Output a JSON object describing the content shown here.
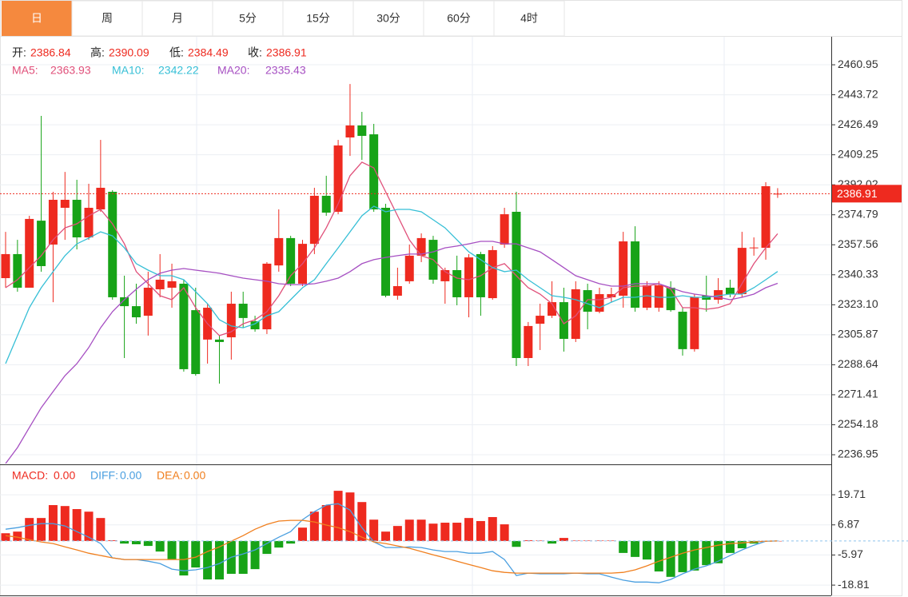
{
  "tabs": [
    "日",
    "周",
    "月",
    "5分",
    "15分",
    "30分",
    "60分",
    "4时"
  ],
  "active_tab": 0,
  "chart_data": [
    {
      "type": "candlestick",
      "up_color": "#ee2a1f",
      "down_color": "#17a317",
      "ohlc_labels": [
        "开:",
        "高:",
        "低:",
        "收:"
      ],
      "candles": [
        [
          2338.4,
          2365.0,
          2332.9,
          2352.2
        ],
        [
          2352.2,
          2360.4,
          2330.6,
          2332.9
        ],
        [
          2332.9,
          2374.2,
          2332.9,
          2372.4
        ],
        [
          2371.4,
          2431.6,
          2342.1,
          2345.3
        ],
        [
          2357.7,
          2388.0,
          2324.6,
          2383.4
        ],
        [
          2378.8,
          2399.4,
          2360.4,
          2383.4
        ],
        [
          2383.4,
          2394.9,
          2354.9,
          2361.8
        ],
        [
          2361.8,
          2392.6,
          2360.4,
          2378.8
        ],
        [
          2377.9,
          2417.8,
          2376.5,
          2390.3
        ],
        [
          2388.0,
          2388.9,
          2326.0,
          2327.4
        ],
        [
          2327.4,
          2339.8,
          2292.5,
          2322.3
        ],
        [
          2322.3,
          2335.2,
          2312.2,
          2315.9
        ],
        [
          2316.8,
          2342.1,
          2305.4,
          2332.9
        ],
        [
          2332.0,
          2352.2,
          2327.4,
          2337.5
        ],
        [
          2332.9,
          2346.7,
          2321.4,
          2336.6
        ],
        [
          2335.2,
          2337.5,
          2284.7,
          2286.1
        ],
        [
          2320.0,
          2332.9,
          2282.4,
          2283.3
        ],
        [
          2303.1,
          2323.7,
          2289.3,
          2321.4
        ],
        [
          2303.1,
          2305.4,
          2277.8,
          2301.7
        ],
        [
          2304.4,
          2330.6,
          2291.6,
          2323.7
        ],
        [
          2323.7,
          2330.6,
          2309.9,
          2315.5
        ],
        [
          2313.6,
          2316.8,
          2307.6,
          2309.0
        ],
        [
          2309.0,
          2347.6,
          2306.3,
          2346.7
        ],
        [
          2345.7,
          2377.9,
          2342.1,
          2361.4
        ],
        [
          2361.4,
          2362.7,
          2333.8,
          2335.2
        ],
        [
          2335.2,
          2360.4,
          2333.8,
          2358.1
        ],
        [
          2358.1,
          2390.3,
          2352.2,
          2385.7
        ],
        [
          2385.7,
          2397.2,
          2374.2,
          2376.0
        ],
        [
          2376.5,
          2417.8,
          2375.1,
          2414.6
        ],
        [
          2419.2,
          2449.9,
          2408.6,
          2426.1
        ],
        [
          2426.1,
          2433.9,
          2406.3,
          2420.1
        ],
        [
          2421.0,
          2427.0,
          2376.5,
          2377.9
        ],
        [
          2378.8,
          2381.1,
          2327.4,
          2328.3
        ],
        [
          2328.3,
          2344.4,
          2326.0,
          2333.8
        ],
        [
          2336.6,
          2357.7,
          2335.2,
          2351.3
        ],
        [
          2351.3,
          2364.1,
          2347.6,
          2361.4
        ],
        [
          2360.4,
          2362.7,
          2335.2,
          2337.5
        ],
        [
          2336.6,
          2344.4,
          2323.7,
          2343.0
        ],
        [
          2343.0,
          2351.3,
          2322.8,
          2327.4
        ],
        [
          2327.4,
          2352.2,
          2315.9,
          2350.3
        ],
        [
          2352.2,
          2353.5,
          2316.8,
          2327.4
        ],
        [
          2326.9,
          2356.8,
          2326.0,
          2354.5
        ],
        [
          2357.7,
          2378.8,
          2355.8,
          2375.1
        ],
        [
          2376.5,
          2388.0,
          2287.9,
          2292.5
        ],
        [
          2292.5,
          2313.2,
          2287.9,
          2310.9
        ],
        [
          2312.2,
          2323.7,
          2297.1,
          2316.8
        ],
        [
          2316.8,
          2336.6,
          2315.5,
          2324.6
        ],
        [
          2324.6,
          2332.9,
          2296.2,
          2303.5
        ],
        [
          2303.5,
          2336.6,
          2301.7,
          2332.0
        ],
        [
          2331.5,
          2335.2,
          2309.0,
          2319.1
        ],
        [
          2319.1,
          2332.9,
          2318.2,
          2329.2
        ],
        [
          2327.4,
          2332.9,
          2324.6,
          2329.2
        ],
        [
          2328.3,
          2365.0,
          2321.4,
          2359.5
        ],
        [
          2359.5,
          2368.2,
          2319.1,
          2321.4
        ],
        [
          2321.4,
          2336.6,
          2320.0,
          2334.3
        ],
        [
          2321.4,
          2336.6,
          2319.1,
          2334.3
        ],
        [
          2332.9,
          2336.6,
          2319.1,
          2320.0
        ],
        [
          2319.1,
          2321.4,
          2293.9,
          2297.6
        ],
        [
          2297.6,
          2329.2,
          2296.2,
          2327.4
        ],
        [
          2328.3,
          2339.8,
          2319.1,
          2326.0
        ],
        [
          2326.0,
          2338.4,
          2323.7,
          2331.5
        ],
        [
          2332.9,
          2337.5,
          2327.4,
          2329.2
        ],
        [
          2329.2,
          2365.0,
          2327.4,
          2355.8
        ],
        [
          2355.8,
          2361.8,
          2351.3,
          2356.0
        ],
        [
          2355.8,
          2393.5,
          2349.0,
          2391.2
        ],
        [
          2386.84,
          2390.09,
          2384.49,
          2386.91
        ]
      ],
      "series": [
        {
          "name": "MA5:",
          "color": "#e0507a",
          "values": [
            2332.9,
            2337.5,
            2344.4,
            2351.3,
            2360.4,
            2367.3,
            2369.6,
            2374.2,
            2377.9,
            2369.6,
            2358.1,
            2342.1,
            2335.2,
            2328.3,
            2326.0,
            2332.9,
            2321.4,
            2312.2,
            2305.4,
            2307.6,
            2312.2,
            2314.5,
            2319.1,
            2328.3,
            2339.8,
            2346.7,
            2355.8,
            2367.3,
            2381.1,
            2397.2,
            2405.0,
            2401.7,
            2388.0,
            2374.2,
            2360.4,
            2351.3,
            2349.0,
            2342.1,
            2338.4,
            2337.5,
            2339.8,
            2344.4,
            2346.7,
            2339.8,
            2332.9,
            2329.2,
            2323.7,
            2312.2,
            2316.8,
            2326.0,
            2326.0,
            2327.4,
            2332.9,
            2333.8,
            2333.8,
            2335.2,
            2332.0,
            2321.4,
            2321.4,
            2320.5,
            2321.4,
            2323.7,
            2335.2,
            2346.7,
            2355.8,
            2363.93
          ]
        },
        {
          "name": "MA10:",
          "color": "#36bfd6",
          "values": [
            2289.3,
            2305.4,
            2321.4,
            2332.9,
            2342.1,
            2351.3,
            2358.1,
            2361.4,
            2365.0,
            2362.7,
            2355.8,
            2346.7,
            2343.0,
            2339.8,
            2339.8,
            2337.5,
            2330.6,
            2323.7,
            2314.5,
            2310.9,
            2309.9,
            2312.2,
            2316.8,
            2319.1,
            2326.0,
            2332.9,
            2337.5,
            2346.7,
            2355.8,
            2365.0,
            2374.2,
            2379.7,
            2376.5,
            2377.9,
            2377.9,
            2376.5,
            2371.9,
            2367.3,
            2360.4,
            2353.5,
            2349.0,
            2344.4,
            2342.1,
            2343.0,
            2337.5,
            2332.9,
            2328.3,
            2327.4,
            2326.0,
            2323.7,
            2321.4,
            2324.6,
            2327.4,
            2327.4,
            2328.3,
            2327.4,
            2327.4,
            2328.3,
            2327.4,
            2327.4,
            2328.3,
            2329.2,
            2329.2,
            2332.9,
            2337.5,
            2342.22
          ]
        },
        {
          "name": "MA20:",
          "color": "#a64fc2",
          "values": [
            2231.9,
            2241.1,
            2252.6,
            2264.0,
            2273.2,
            2282.4,
            2289.3,
            2298.5,
            2309.9,
            2319.1,
            2326.0,
            2332.0,
            2337.5,
            2341.2,
            2343.0,
            2343.9,
            2343.0,
            2342.1,
            2341.2,
            2339.8,
            2338.4,
            2337.5,
            2336.6,
            2335.2,
            2334.7,
            2334.7,
            2335.2,
            2336.6,
            2338.4,
            2342.1,
            2346.7,
            2349.0,
            2350.3,
            2351.3,
            2352.2,
            2352.2,
            2353.5,
            2355.8,
            2356.8,
            2358.1,
            2359.5,
            2359.5,
            2358.1,
            2358.1,
            2355.8,
            2353.5,
            2349.0,
            2344.4,
            2339.8,
            2337.5,
            2335.2,
            2333.8,
            2333.8,
            2335.2,
            2335.2,
            2335.2,
            2332.9,
            2330.6,
            2329.2,
            2328.3,
            2327.4,
            2326.0,
            2327.4,
            2329.2,
            2332.9,
            2335.43
          ]
        }
      ],
      "ylim": [
        2231.9,
        2477.5
      ],
      "yticks": [
        2460.95,
        2443.72,
        2426.49,
        2409.25,
        2392.02,
        2374.79,
        2357.56,
        2340.33,
        {
          "value": 2323.1,
          "label": "2323.10"
        },
        2305.87,
        2288.64,
        2271.41,
        2254.18,
        2236.95
      ],
      "grid": true
    },
    {
      "type": "macd",
      "series": [
        {
          "name": "MACD:",
          "style": "bar",
          "color": "#ee2a1f",
          "negative_color": "#17a317",
          "readout": "0.00",
          "values": [
            3.3,
            4.0,
            9.8,
            9.8,
            15.3,
            14.9,
            13.6,
            12.5,
            9.8,
            0.3,
            -1.1,
            -1.4,
            -2.1,
            -4.5,
            -7.9,
            -14.7,
            -11.3,
            -16.4,
            -16.4,
            -14.0,
            -14.0,
            -12.0,
            -5.5,
            -2.8,
            -1.1,
            5.7,
            12.5,
            15.3,
            21.4,
            20.7,
            16.6,
            9.1,
            4.0,
            6.4,
            9.1,
            9.1,
            7.4,
            7.8,
            7.8,
            9.8,
            8.5,
            10.2,
            7.1,
            -2.5,
            0.3,
            0.2,
            -1.1,
            1.3,
            0.2,
            0.2,
            0.2,
            0.2,
            -5.1,
            -6.8,
            -7.9,
            -13.0,
            -15.3,
            -13.3,
            -12.6,
            -10.3,
            -9.5,
            -5.1,
            -3.1,
            -1.1,
            0.1,
            0
          ]
        },
        {
          "name": "DIFF:",
          "style": "line",
          "color": "#4a9fe0",
          "readout": "0.00",
          "values": [
            5.0,
            5.7,
            6.7,
            7.4,
            7.4,
            6.4,
            4.0,
            1.6,
            -1.1,
            -7.2,
            -7.9,
            -7.9,
            -8.6,
            -9.6,
            -12.0,
            -12.7,
            -12.3,
            -11.3,
            -9.6,
            -6.9,
            -5.5,
            -3.8,
            -1.1,
            1.6,
            4.0,
            9.1,
            12.5,
            15.3,
            15.9,
            13.2,
            5.7,
            -0.4,
            -2.8,
            -2.8,
            -2.5,
            -2.8,
            -3.8,
            -4.5,
            -4.5,
            -5.2,
            -5.2,
            -4.5,
            -7.9,
            -14.7,
            -13.7,
            -14.0,
            -14.0,
            -14.0,
            -13.7,
            -14.0,
            -14.0,
            -15.4,
            -16.7,
            -17.5,
            -17.5,
            -17.8,
            -16.4,
            -14.0,
            -12.0,
            -10.6,
            -8.6,
            -6.2,
            -3.8,
            -1.8,
            -0.1,
            0
          ]
        },
        {
          "name": "DEA:",
          "style": "line",
          "color": "#f07f1e",
          "readout": "0.00",
          "values": [
            2.3,
            1.6,
            0.6,
            -0.4,
            -1.1,
            -2.5,
            -3.8,
            -5.2,
            -6.2,
            -7.2,
            -7.9,
            -7.9,
            -7.9,
            -7.9,
            -7.9,
            -7.9,
            -6.9,
            -4.5,
            -2.5,
            -0.1,
            2.3,
            5.0,
            7.1,
            8.5,
            8.8,
            8.8,
            8.1,
            6.8,
            5.7,
            4.0,
            1.6,
            -0.4,
            -1.1,
            -2.1,
            -3.1,
            -4.5,
            -5.9,
            -7.2,
            -8.6,
            -10.0,
            -11.3,
            -12.7,
            -13.4,
            -13.7,
            -13.7,
            -13.7,
            -13.7,
            -13.7,
            -13.7,
            -13.7,
            -13.7,
            -13.7,
            -13.4,
            -12.3,
            -10.6,
            -8.6,
            -6.9,
            -5.2,
            -3.8,
            -2.8,
            -1.8,
            -1.1,
            -0.8,
            -0.4,
            -0.1,
            0
          ]
        }
      ],
      "ylim": [
        -23.2,
        32.0
      ],
      "yticks": [
        19.71,
        6.87,
        -5.97,
        -18.81
      ],
      "grid": true
    }
  ]
}
